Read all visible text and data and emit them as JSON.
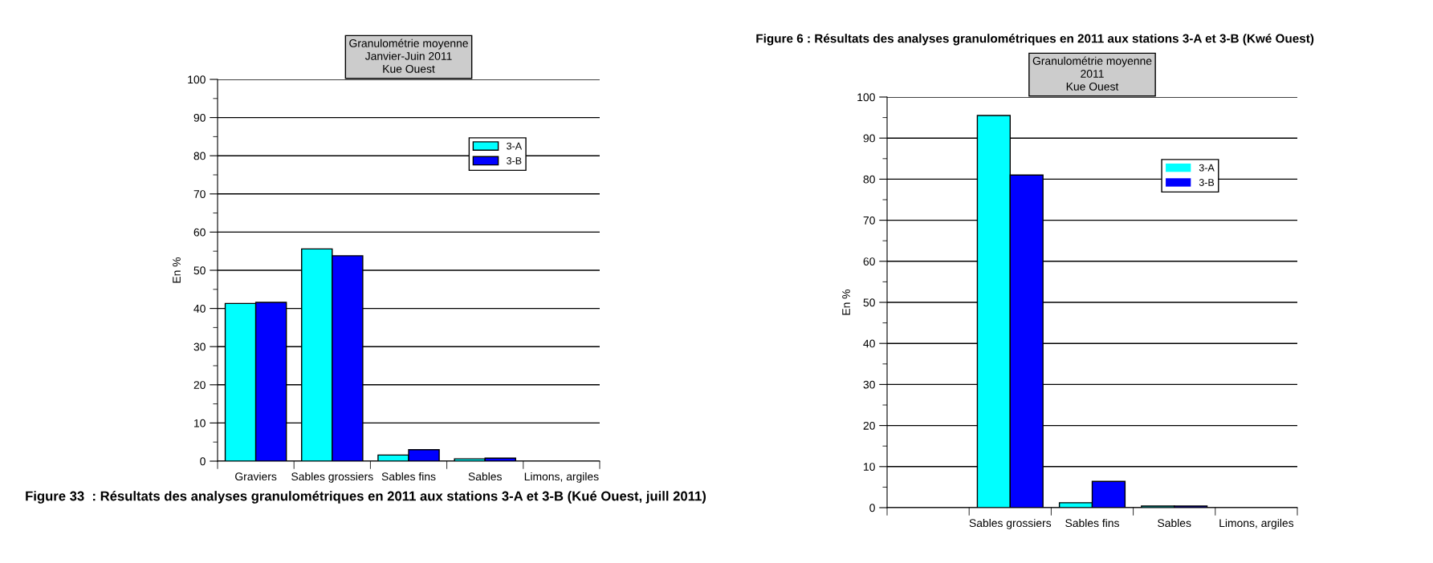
{
  "chart_data": [
    {
      "type": "bar",
      "title": "Granulométrie moyenne\nJanvier-Juin 2011\nKue Ouest",
      "ylabel": "En %",
      "categories": [
        "Graviers",
        "Sables grossiers",
        "Sables fins",
        "Sables",
        "Limons, argiles"
      ],
      "series": [
        {
          "name": "3-A",
          "color": "#00ffff",
          "values": [
            41.3,
            55.6,
            1.6,
            0.6,
            0
          ]
        },
        {
          "name": "3-B",
          "color": "#0000ff",
          "values": [
            41.6,
            53.8,
            3.0,
            0.8,
            0
          ]
        }
      ],
      "ylim": [
        0,
        100
      ],
      "yticks": [
        0,
        10,
        20,
        30,
        40,
        50,
        60,
        70,
        80,
        90,
        100
      ],
      "grid": "y",
      "legend": "top right",
      "annotations": [
        "Figure 33  : Résultats des analyses granulométriques en 2011 aux stations 3-A et 3-B (Kué Ouest, juill 2011)"
      ]
    },
    {
      "type": "bar",
      "title": "Granulométrie moyenne\n2011\nKue Ouest",
      "ylabel": "En %",
      "categories": [
        null,
        "Sables grossiers",
        "Sables fins",
        "Sables",
        "Limons, argiles"
      ],
      "series": [
        {
          "name": "3-A",
          "color": "#00ffff",
          "values": [
            null,
            95.5,
            1.2,
            0.4,
            0
          ]
        },
        {
          "name": "3-B",
          "color": "#0000ff",
          "values": [
            null,
            81.0,
            6.4,
            0.4,
            0
          ]
        }
      ],
      "ylim": [
        0,
        100
      ],
      "yticks": [
        0,
        10,
        20,
        30,
        40,
        50,
        60,
        70,
        80,
        90,
        100
      ],
      "grid": "y",
      "legend": "top right",
      "annotations": [
        "Figure 6 : Résultats des analyses granulométriques en 2011 aux stations 3-A et 3-B (Kwé Ouest)"
      ]
    }
  ]
}
